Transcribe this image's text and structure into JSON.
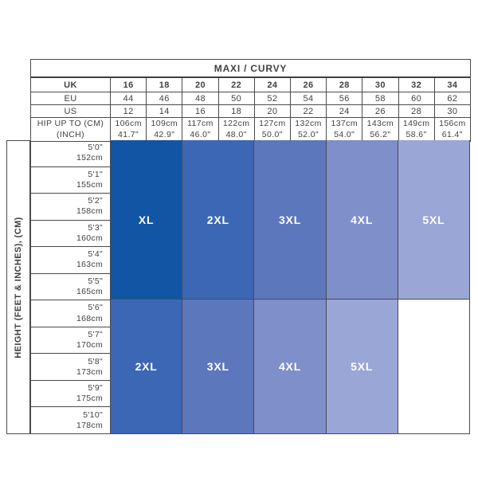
{
  "table": {
    "title": "MAXI / CURVY",
    "row_labels": {
      "uk": "UK",
      "eu": "EU",
      "us": "US",
      "hip_line1": "HIP UP TO (CM)",
      "hip_line2": "(INCH)"
    },
    "uk": [
      "16",
      "18",
      "20",
      "22",
      "24",
      "26",
      "28",
      "30",
      "32",
      "34"
    ],
    "eu": [
      "44",
      "46",
      "48",
      "50",
      "52",
      "54",
      "56",
      "58",
      "60",
      "62"
    ],
    "us": [
      "12",
      "14",
      "16",
      "18",
      "20",
      "22",
      "24",
      "26",
      "28",
      "30"
    ],
    "hip_cm": [
      "106cm",
      "109cm",
      "117cm",
      "122cm",
      "127cm",
      "132cm",
      "137cm",
      "143cm",
      "149cm",
      "156cm"
    ],
    "hip_inch": [
      "41.7\"",
      "42.9\"",
      "46.0\"",
      "48.0\"",
      "50.0\"",
      "52.0\"",
      "54.0\"",
      "56.2\"",
      "58.6\"",
      "61.4\""
    ]
  },
  "height_axis": {
    "label": "HEIGHT (FEET & INCHES), (CM)",
    "rows": [
      {
        "feet": "5'0\"",
        "cm": "152cm"
      },
      {
        "feet": "5'1\"",
        "cm": "155cm"
      },
      {
        "feet": "5'2\"",
        "cm": "158cm"
      },
      {
        "feet": "5'3\"",
        "cm": "160cm"
      },
      {
        "feet": "5'4\"",
        "cm": "163cm"
      },
      {
        "feet": "5'5\"",
        "cm": "165cm"
      },
      {
        "feet": "5'6\"",
        "cm": "168cm"
      },
      {
        "feet": "5'7\"",
        "cm": "170cm"
      },
      {
        "feet": "5'8\"",
        "cm": "173cm"
      },
      {
        "feet": "5'9\"",
        "cm": "175cm"
      },
      {
        "feet": "5'10\"",
        "cm": "178cm"
      }
    ]
  },
  "grid": {
    "top_band": [
      {
        "label": "XL",
        "color": "#1255a5"
      },
      {
        "label": "2XL",
        "color": "#3b67b5"
      },
      {
        "label": "3XL",
        "color": "#5d77bd"
      },
      {
        "label": "4XL",
        "color": "#7e8fc9"
      },
      {
        "label": "5XL",
        "color": "#9aa6d6"
      }
    ],
    "bottom_band": [
      {
        "label": "2XL",
        "color": "#3b67b5"
      },
      {
        "label": "3XL",
        "color": "#5d77bd"
      },
      {
        "label": "4XL",
        "color": "#7e8fc9"
      },
      {
        "label": "5XL",
        "color": "#9aa6d6"
      },
      {
        "label": "",
        "color": "#ffffff"
      }
    ]
  },
  "colors": {
    "border": "#4a4a4a",
    "text": "#414141",
    "size_xl": "#1255a5",
    "size_2xl": "#3b67b5",
    "size_3xl": "#5d77bd",
    "size_4xl": "#7e8fc9",
    "size_5xl": "#9aa6d6"
  },
  "chart_data": {
    "type": "table",
    "title": "MAXI / CURVY",
    "uk_sizes": [
      16,
      18,
      20,
      22,
      24,
      26,
      28,
      30,
      32,
      34
    ],
    "eu_sizes": [
      44,
      46,
      48,
      50,
      52,
      54,
      56,
      58,
      60,
      62
    ],
    "us_sizes": [
      12,
      14,
      16,
      18,
      20,
      22,
      24,
      26,
      28,
      30
    ],
    "hip_up_to_cm": [
      106,
      109,
      117,
      122,
      127,
      132,
      137,
      143,
      149,
      156
    ],
    "hip_up_to_inch": [
      41.7,
      42.9,
      46.0,
      48.0,
      50.0,
      52.0,
      54.0,
      56.2,
      58.6,
      61.4
    ],
    "heights_feet": [
      "5'0\"",
      "5'1\"",
      "5'2\"",
      "5'3\"",
      "5'4\"",
      "5'5\"",
      "5'6\"",
      "5'7\"",
      "5'8\"",
      "5'9\"",
      "5'10\""
    ],
    "heights_cm": [
      152,
      155,
      158,
      160,
      163,
      165,
      168,
      170,
      173,
      175,
      178
    ],
    "size_by_height_and_uk_size": {
      "heights_5'0\"_to_5'5\"": {
        "uk_16-18": "XL",
        "uk_20-22": "2XL",
        "uk_24-26": "3XL",
        "uk_28-30": "4XL",
        "uk_32-34": "5XL"
      },
      "heights_5'6\"_to_5'10\"": {
        "uk_16-18": "2XL",
        "uk_20-22": "3XL",
        "uk_24-26": "4XL",
        "uk_28-30": "5XL",
        "uk_32-34": null
      }
    },
    "legend_position": "none",
    "grid": true
  }
}
